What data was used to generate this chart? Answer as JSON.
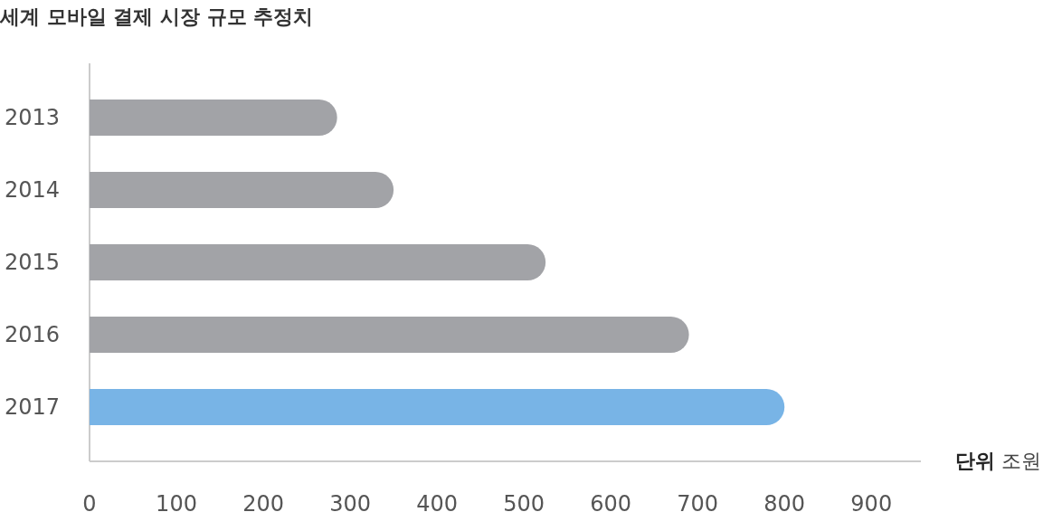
{
  "chart_data": {
    "type": "bar",
    "orientation": "horizontal",
    "title": "세계 모바일 결제 시장 규모 추정치",
    "xlabel": "단위 조원",
    "categories": [
      "2013",
      "2014",
      "2015",
      "2016",
      "2017"
    ],
    "values": [
      285,
      350,
      525,
      690,
      800
    ],
    "colors": [
      "#a2a3a7",
      "#a2a3a7",
      "#a2a3a7",
      "#a2a3a7",
      "#78b4e6"
    ],
    "xlim": [
      0,
      957
    ],
    "xticks": [
      0,
      100,
      200,
      300,
      400,
      500,
      600,
      700,
      800,
      900
    ],
    "tick_labels": "xy"
  }
}
